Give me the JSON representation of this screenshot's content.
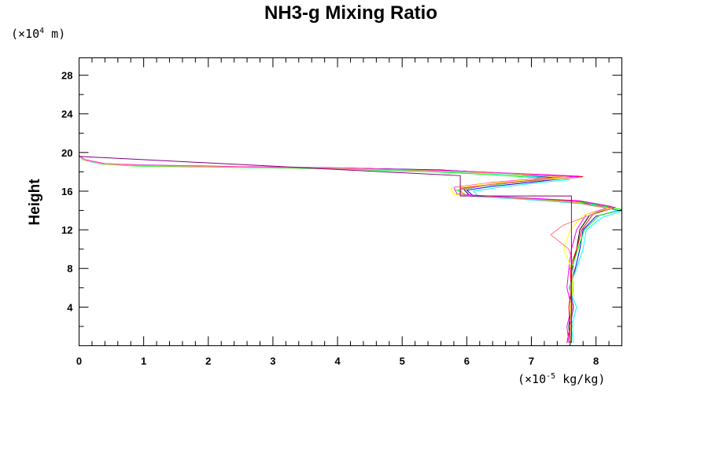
{
  "chart_data": {
    "type": "line",
    "title": "NH3-g Mixing Ratio",
    "ylabel": "Height",
    "y_unit_prefix": "(×10",
    "y_unit_exp": "4",
    "y_unit_suffix": " m)",
    "x_unit_prefix": "(×10",
    "x_unit_exp": "-5",
    "x_unit_suffix": " kg/kg)",
    "xlim": [
      0,
      8.4
    ],
    "ylim": [
      0,
      29.8
    ],
    "x_ticks": [
      0,
      1,
      2,
      3,
      4,
      5,
      6,
      7,
      8
    ],
    "x_tick_labels": [
      "0",
      "1",
      "2",
      "3",
      "4",
      "5",
      "6",
      "7",
      "8"
    ],
    "y_ticks": [
      4,
      8,
      12,
      16,
      20,
      24,
      28
    ],
    "y_tick_labels": [
      "4",
      "8",
      "12",
      "16",
      "20",
      "24",
      "28"
    ],
    "grid": false,
    "series": [
      {
        "color": "#000000",
        "points": [
          [
            7.6,
            0.3
          ],
          [
            7.58,
            2
          ],
          [
            7.62,
            4
          ],
          [
            7.6,
            6
          ],
          [
            7.63,
            8
          ],
          [
            7.7,
            10
          ],
          [
            7.75,
            12
          ],
          [
            7.9,
            13.5
          ],
          [
            8.2,
            14.2
          ],
          [
            7.7,
            14.8
          ],
          [
            7.2,
            15.1
          ],
          [
            6.6,
            15.3
          ],
          [
            6.05,
            15.5
          ],
          [
            5.95,
            16.2
          ],
          [
            6.3,
            16.6
          ],
          [
            7.0,
            17.1
          ],
          [
            7.4,
            17.3
          ],
          [
            6.6,
            17.8
          ],
          [
            5.6,
            18.2
          ],
          [
            4.0,
            18.4
          ],
          [
            2.5,
            18.5
          ],
          [
            1.0,
            18.65
          ],
          [
            0.4,
            18.8
          ],
          [
            0.1,
            19.2
          ],
          [
            0.0,
            19.6
          ],
          [
            0.0,
            29.8
          ]
        ]
      },
      {
        "color": "#0000ff",
        "points": [
          [
            7.62,
            0.3
          ],
          [
            7.6,
            2
          ],
          [
            7.65,
            4
          ],
          [
            7.6,
            6
          ],
          [
            7.68,
            8
          ],
          [
            7.75,
            10
          ],
          [
            7.8,
            12
          ],
          [
            8.0,
            13.4
          ],
          [
            8.35,
            14.0
          ],
          [
            7.9,
            14.7
          ],
          [
            7.3,
            15.0
          ],
          [
            6.7,
            15.25
          ],
          [
            6.1,
            15.5
          ],
          [
            6.0,
            16.1
          ],
          [
            6.4,
            16.5
          ],
          [
            7.1,
            17.0
          ],
          [
            7.5,
            17.3
          ],
          [
            6.5,
            17.9
          ],
          [
            5.5,
            18.2
          ],
          [
            3.8,
            18.42
          ],
          [
            2.2,
            18.55
          ],
          [
            0.8,
            18.7
          ],
          [
            0.3,
            18.9
          ],
          [
            0.05,
            19.3
          ],
          [
            0.0,
            19.7
          ],
          [
            0.0,
            29.8
          ]
        ]
      },
      {
        "color": "#ff0000",
        "points": [
          [
            7.55,
            0.3
          ],
          [
            7.6,
            2
          ],
          [
            7.58,
            4
          ],
          [
            7.62,
            6
          ],
          [
            7.6,
            8
          ],
          [
            7.7,
            10
          ],
          [
            7.78,
            12
          ],
          [
            7.95,
            13.6
          ],
          [
            8.3,
            14.3
          ],
          [
            7.8,
            14.9
          ],
          [
            7.1,
            15.2
          ],
          [
            6.5,
            15.4
          ],
          [
            5.9,
            15.6
          ],
          [
            5.9,
            16.3
          ],
          [
            6.5,
            16.8
          ],
          [
            7.2,
            17.2
          ],
          [
            7.8,
            17.5
          ],
          [
            6.8,
            17.8
          ],
          [
            5.7,
            18.1
          ],
          [
            4.2,
            18.35
          ],
          [
            2.6,
            18.5
          ],
          [
            1.1,
            18.65
          ],
          [
            0.4,
            18.8
          ],
          [
            0.1,
            19.2
          ],
          [
            0.0,
            19.6
          ],
          [
            0.0,
            29.8
          ]
        ]
      },
      {
        "color": "#00ff00",
        "points": [
          [
            7.6,
            0.3
          ],
          [
            7.63,
            2
          ],
          [
            7.6,
            4
          ],
          [
            7.65,
            6
          ],
          [
            7.62,
            8
          ],
          [
            7.72,
            10
          ],
          [
            7.82,
            12
          ],
          [
            8.05,
            13.5
          ],
          [
            8.4,
            14.1
          ],
          [
            7.85,
            14.8
          ],
          [
            7.2,
            15.1
          ],
          [
            6.6,
            15.35
          ],
          [
            6.0,
            15.6
          ],
          [
            5.85,
            16.1
          ],
          [
            6.2,
            16.5
          ],
          [
            6.9,
            17.0
          ],
          [
            7.4,
            17.25
          ],
          [
            6.4,
            17.7
          ],
          [
            5.5,
            18.0
          ],
          [
            4.0,
            18.3
          ],
          [
            2.4,
            18.45
          ],
          [
            0.9,
            18.6
          ],
          [
            0.35,
            18.8
          ],
          [
            0.08,
            19.2
          ],
          [
            0.0,
            19.6
          ],
          [
            0.0,
            29.8
          ]
        ]
      },
      {
        "color": "#00ffff",
        "points": [
          [
            7.65,
            0.3
          ],
          [
            7.62,
            2
          ],
          [
            7.7,
            4
          ],
          [
            7.58,
            6
          ],
          [
            7.7,
            8
          ],
          [
            7.8,
            10
          ],
          [
            7.85,
            12
          ],
          [
            8.1,
            13.3
          ],
          [
            8.38,
            13.9
          ],
          [
            7.95,
            14.6
          ],
          [
            7.3,
            14.95
          ],
          [
            6.75,
            15.2
          ],
          [
            6.2,
            15.4
          ],
          [
            6.1,
            16.0
          ],
          [
            6.5,
            16.4
          ],
          [
            7.15,
            16.9
          ],
          [
            7.6,
            17.2
          ],
          [
            6.6,
            17.75
          ],
          [
            5.6,
            18.05
          ],
          [
            3.9,
            18.35
          ],
          [
            2.3,
            18.5
          ],
          [
            0.85,
            18.65
          ],
          [
            0.3,
            18.85
          ],
          [
            0.05,
            19.25
          ],
          [
            0.0,
            19.65
          ],
          [
            0.0,
            29.8
          ]
        ]
      },
      {
        "color": "#ff00ff",
        "points": [
          [
            7.58,
            0.3
          ],
          [
            7.55,
            2
          ],
          [
            7.62,
            4
          ],
          [
            7.55,
            6
          ],
          [
            7.58,
            8
          ],
          [
            7.62,
            10
          ],
          [
            7.7,
            12
          ],
          [
            7.85,
            13.6
          ],
          [
            8.25,
            14.4
          ],
          [
            7.75,
            15.0
          ],
          [
            7.05,
            15.25
          ],
          [
            6.45,
            15.45
          ],
          [
            5.85,
            15.7
          ],
          [
            5.8,
            16.4
          ],
          [
            6.4,
            16.9
          ],
          [
            7.1,
            17.3
          ],
          [
            7.75,
            17.55
          ],
          [
            6.7,
            17.85
          ],
          [
            5.65,
            18.15
          ],
          [
            4.1,
            18.4
          ],
          [
            2.5,
            18.55
          ],
          [
            1.0,
            18.7
          ],
          [
            0.4,
            18.85
          ],
          [
            0.1,
            19.25
          ],
          [
            0.0,
            19.65
          ],
          [
            0.0,
            29.8
          ]
        ]
      },
      {
        "color": "#ffff00",
        "points": [
          [
            7.6,
            0.3
          ],
          [
            7.62,
            2
          ],
          [
            7.6,
            4
          ],
          [
            7.64,
            6
          ],
          [
            7.62,
            8
          ],
          [
            7.5,
            10
          ],
          [
            7.6,
            12
          ],
          [
            7.8,
            13.5
          ],
          [
            8.2,
            14.2
          ],
          [
            7.7,
            14.85
          ],
          [
            7.0,
            15.15
          ],
          [
            6.4,
            15.4
          ],
          [
            5.8,
            15.65
          ],
          [
            5.75,
            16.3
          ],
          [
            6.3,
            16.8
          ],
          [
            7.0,
            17.2
          ],
          [
            7.6,
            17.4
          ],
          [
            6.6,
            17.8
          ],
          [
            5.55,
            18.1
          ],
          [
            4.0,
            18.35
          ],
          [
            2.45,
            18.5
          ],
          [
            0.95,
            18.65
          ],
          [
            0.35,
            18.85
          ],
          [
            0.08,
            19.2
          ],
          [
            0.0,
            19.6
          ],
          [
            0.0,
            29.8
          ]
        ]
      },
      {
        "color": "#ff8080",
        "points": [
          [
            7.62,
            0.3
          ],
          [
            7.6,
            2
          ],
          [
            7.64,
            4
          ],
          [
            7.6,
            6
          ],
          [
            7.66,
            8
          ],
          [
            7.58,
            10
          ],
          [
            7.3,
            11.5
          ],
          [
            7.5,
            12.5
          ],
          [
            7.9,
            13.5
          ],
          [
            8.25,
            14.2
          ],
          [
            7.7,
            14.8
          ],
          [
            7.1,
            15.1
          ],
          [
            6.5,
            15.35
          ],
          [
            5.95,
            15.55
          ],
          [
            5.9,
            16.2
          ],
          [
            6.4,
            16.7
          ],
          [
            7.1,
            17.1
          ],
          [
            7.7,
            17.4
          ],
          [
            6.7,
            17.8
          ],
          [
            5.6,
            18.1
          ],
          [
            4.1,
            18.35
          ],
          [
            2.5,
            18.5
          ],
          [
            1.0,
            18.65
          ],
          [
            0.4,
            18.8
          ],
          [
            0.1,
            19.2
          ],
          [
            0.0,
            19.6
          ],
          [
            0.0,
            29.8
          ]
        ]
      },
      {
        "color": "#800080",
        "points": [
          [
            7.62,
            0.3
          ],
          [
            7.62,
            2
          ],
          [
            7.62,
            4
          ],
          [
            7.62,
            6
          ],
          [
            7.62,
            8
          ],
          [
            7.62,
            10
          ],
          [
            7.62,
            12
          ],
          [
            7.62,
            14
          ],
          [
            7.62,
            15.5
          ],
          [
            5.9,
            15.5
          ],
          [
            5.9,
            16.4
          ],
          [
            5.9,
            17.6
          ],
          [
            0.0,
            19.6
          ],
          [
            0.0,
            29.8
          ]
        ]
      }
    ]
  }
}
